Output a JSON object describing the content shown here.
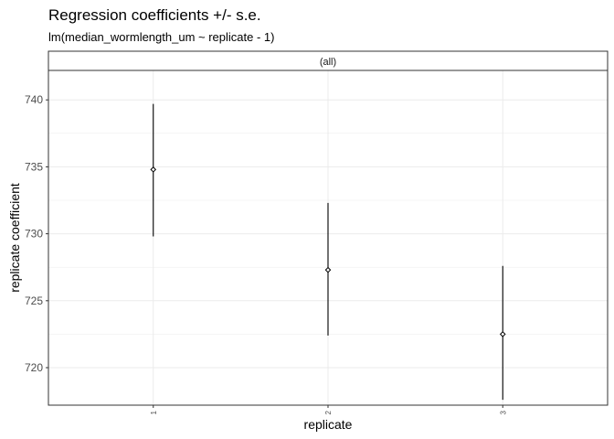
{
  "chart_data": {
    "type": "scatter",
    "title": "Regression coefficients +/- s.e.",
    "subtitle": "lm(median_wormlength_um ~ replicate - 1)",
    "facet_label": "(all)",
    "xlabel": "replicate",
    "ylabel": "replicate coefficient",
    "categories": [
      "1",
      "2",
      "3"
    ],
    "estimates": [
      734.8,
      727.3,
      722.5
    ],
    "lower": [
      729.8,
      722.4,
      717.6
    ],
    "upper": [
      739.7,
      732.3,
      727.6
    ],
    "yticks": [
      720,
      725,
      730,
      735,
      740
    ],
    "yticklabels": [
      "720",
      "725",
      "730",
      "735",
      "740"
    ],
    "ylim": [
      717.2,
      742.2
    ],
    "grid": true,
    "colors": {
      "marks": "#000000",
      "grid": "#ebebeb",
      "panel_border": "#333333"
    }
  }
}
